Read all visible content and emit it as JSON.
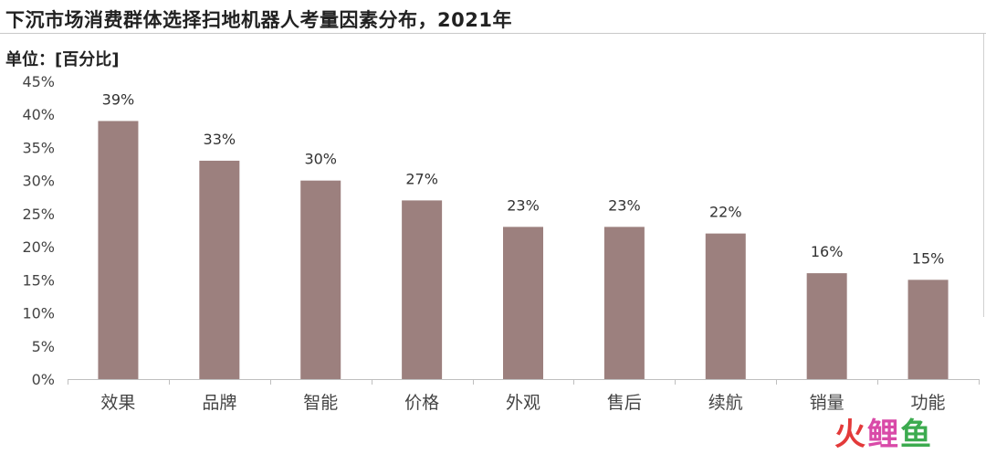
{
  "title": "下沉市场消费群体选择扫地机器人考量因素分布，2021年",
  "unit_label": "单位：[百分比]",
  "watermark": {
    "chars": [
      "火",
      "鲤",
      "鱼"
    ],
    "colors": [
      "#e33a3a",
      "#d94aa8",
      "#3cab4f"
    ]
  },
  "chart_data": {
    "type": "bar",
    "title": "下沉市场消费群体选择扫地机器人考量因素分布，2021年",
    "xlabel": "",
    "ylabel": "",
    "categories": [
      "效果",
      "品牌",
      "智能",
      "价格",
      "外观",
      "售后",
      "续航",
      "销量",
      "功能"
    ],
    "values": [
      39,
      33,
      30,
      27,
      23,
      23,
      22,
      16,
      15
    ],
    "data_labels": [
      "39%",
      "33%",
      "30%",
      "27%",
      "23%",
      "23%",
      "22%",
      "16%",
      "15%"
    ],
    "ylim": [
      0,
      45
    ],
    "yticks": [
      0,
      5,
      10,
      15,
      20,
      25,
      30,
      35,
      40,
      45
    ],
    "ytick_labels": [
      "0%",
      "5%",
      "10%",
      "15%",
      "20%",
      "25%",
      "30%",
      "35%",
      "40%",
      "45%"
    ],
    "bar_color": "#9c807e",
    "grid": false,
    "legend": "none"
  }
}
